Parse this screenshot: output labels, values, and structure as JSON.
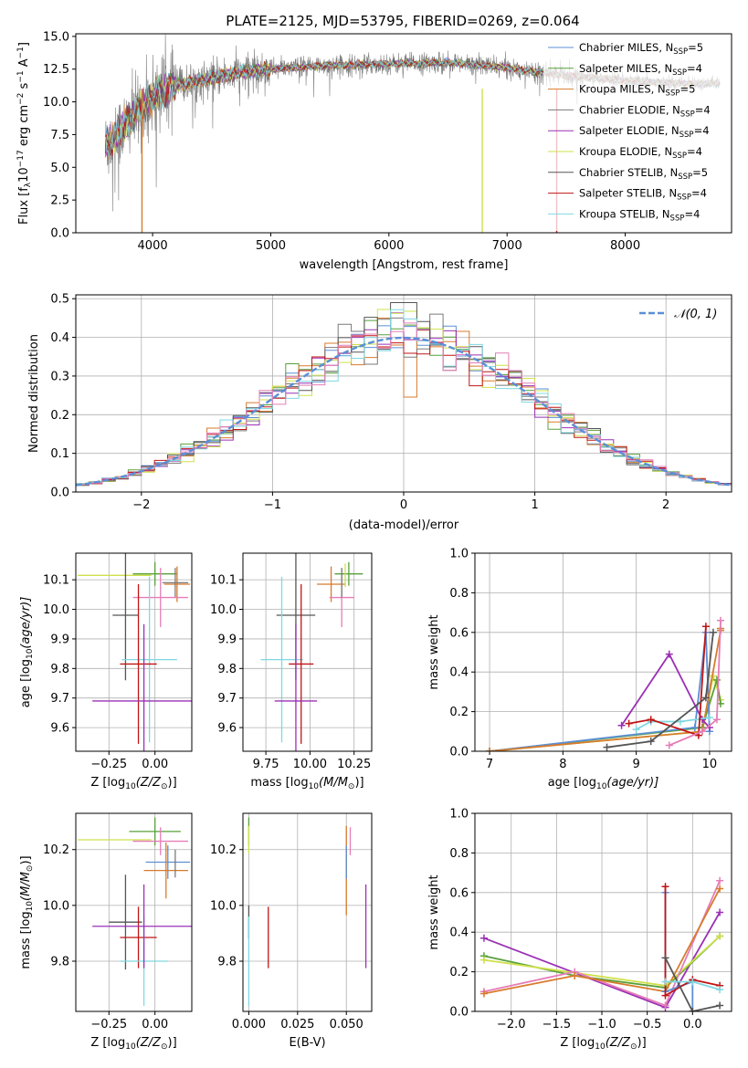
{
  "colors": {
    "Chabrier MILES": "#5b8fd6",
    "Salpeter MILES": "#59a03a",
    "Kroupa MILES": "#d77b2c",
    "Chabrier ELODIE": "#7a7a7a",
    "Salpeter ELODIE": "#9b30b5",
    "Kroupa ELODIE": "#cfe04a",
    "Chabrier STELIB": "#555555",
    "Salpeter STELIB": "#c01515",
    "Kroupa STELIB": "#7fd8e0",
    "Salpeter STELIB alt": "#e67db8",
    "normal": "#5b8fd6"
  },
  "chart_data": [
    {
      "id": "spectrum",
      "type": "line",
      "title": "PLATE=2125, MJD=53795, FIBERID=0269, z=0.064",
      "xlabel": "wavelength [Angstrom, rest frame]",
      "ylabel_parts": {
        "a": "Flux [f",
        "b": "λ",
        "c": "10",
        "d": "−17",
        "e": " erg cm",
        "f": "−2",
        "g": " s",
        "h": "−1",
        "i": " A",
        "j": "−1",
        "k": "]"
      },
      "xlim": [
        3350,
        8900
      ],
      "ylim": [
        0,
        15.2
      ],
      "xticks": [
        4000,
        5000,
        6000,
        7000,
        8000
      ],
      "yticks": [
        0.0,
        2.5,
        5.0,
        7.5,
        10.0,
        12.5,
        15.0
      ],
      "ytick_labels": [
        "0.0",
        "2.5",
        "5.0",
        "7.5",
        "10.0",
        "12.5",
        "15.0"
      ],
      "legend": [
        {
          "name": "Chabrier MILES",
          "nssp": "5"
        },
        {
          "name": "Salpeter MILES",
          "nssp": "4"
        },
        {
          "name": "Kroupa MILES",
          "nssp": "5"
        },
        {
          "name": "Chabrier ELODIE",
          "nssp": "4"
        },
        {
          "name": "Salpeter ELODIE",
          "nssp": "4"
        },
        {
          "name": "Kroupa ELODIE",
          "nssp": "4"
        },
        {
          "name": "Chabrier STELIB",
          "nssp": "5"
        },
        {
          "name": "Salpeter STELIB",
          "nssp": "4"
        },
        {
          "name": "Kroupa STELIB",
          "nssp": "4"
        }
      ],
      "legend_sub": "SSP",
      "legend_prefix": ", N",
      "legend_eq": "=",
      "legend_loc": "upper right",
      "data_envelope": {
        "x": [
          3600,
          3700,
          3800,
          3900,
          4000,
          4200,
          4400,
          4600,
          4800,
          5000,
          5500,
          6000,
          6500,
          7000,
          7500,
          8000,
          8500,
          8800
        ],
        "y": [
          6.5,
          7.5,
          8.5,
          9.5,
          10.5,
          11.2,
          11.6,
          12.0,
          12.3,
          12.5,
          12.8,
          12.9,
          13.0,
          12.6,
          12.0,
          11.6,
          11.4,
          11.4
        ]
      },
      "grid": false
    },
    {
      "id": "residuals",
      "type": "bar",
      "xlabel": "(data-model)/error",
      "ylabel": "Normed distribution",
      "xlim": [
        -2.5,
        2.5
      ],
      "ylim": [
        0,
        0.51
      ],
      "xticks": [
        -2,
        -1,
        0,
        1,
        2
      ],
      "xtick_labels": [
        "−2",
        "−1",
        "0",
        "1",
        "2"
      ],
      "yticks": [
        0.0,
        0.1,
        0.2,
        0.3,
        0.4,
        0.5
      ],
      "ytick_labels": [
        "0.0",
        "0.1",
        "0.2",
        "0.3",
        "0.4",
        "0.5"
      ],
      "bin_width": 0.1,
      "legend": [
        {
          "name": "𝒩(0, 1)"
        }
      ],
      "legend_loc": "upper right",
      "grid": true
    },
    {
      "id": "age-vs-z",
      "type": "scatter",
      "xlabel": "Z [log",
      "xlabel_sub": "10",
      "xlabel_tail": "(Z/Z",
      "xlabel_sun": "⊙",
      "xlabel_end": ")]",
      "ylabel": "age  [log",
      "ylabel_sub": "10",
      "ylabel_tail": "(age/yr)]",
      "xlim": [
        -0.43,
        0.2
      ],
      "ylim": [
        9.52,
        10.19
      ],
      "xticks": [
        -0.25,
        0.0
      ],
      "xtick_labels": [
        "−0.25",
        "0.00"
      ],
      "yticks": [
        9.6,
        9.7,
        9.8,
        9.9,
        10.0,
        10.1
      ],
      "ytick_labels": [
        "9.6",
        "9.7",
        "9.8",
        "9.9",
        "10.0",
        "10.1"
      ],
      "points": [
        {
          "series": "Kroupa ELODIE",
          "x": -0.22,
          "xerr": 0.2,
          "y": 10.115,
          "yerr": 0.0
        },
        {
          "series": "Salpeter MILES",
          "x": 0.0,
          "xerr": 0.12,
          "y": 10.12,
          "yerr": 0.04
        },
        {
          "series": "Kroupa MILES",
          "x": 0.12,
          "xerr": 0.07,
          "y": 10.085,
          "yerr": 0.06
        },
        {
          "series": "Chabrier ELODIE",
          "x": 0.11,
          "xerr": 0.07,
          "y": 10.09,
          "yerr": 0.05
        },
        {
          "series": "Salpeter STELIB alt",
          "x": 0.03,
          "xerr": 0.15,
          "y": 10.04,
          "yerr": 0.1
        },
        {
          "series": "Chabrier STELIB",
          "x": -0.16,
          "xerr": 0.07,
          "y": 9.98,
          "yerr": 0.22
        },
        {
          "series": "Kroupa STELIB",
          "x": -0.03,
          "xerr": 0.15,
          "y": 9.83,
          "yerr": 0.28
        },
        {
          "series": "Salpeter STELIB",
          "x": -0.09,
          "xerr": 0.1,
          "y": 9.815,
          "yerr": 0.27
        },
        {
          "series": "Salpeter ELODIE",
          "x": -0.06,
          "xerr": 0.28,
          "y": 9.69,
          "yerr": 0.26
        }
      ],
      "grid": true
    },
    {
      "id": "age-vs-mass",
      "type": "scatter",
      "xlabel": "mass [log",
      "xlabel_sub": "10",
      "xlabel_tail": "(M/M",
      "xlabel_sun": "⊙",
      "xlabel_end": ")]",
      "xlim": [
        9.62,
        10.35
      ],
      "ylim": [
        9.52,
        10.19
      ],
      "xticks": [
        9.75,
        10.0,
        10.25
      ],
      "xtick_labels": [
        "9.75",
        "10.00",
        "10.25"
      ],
      "yticks": [
        9.6,
        9.7,
        9.8,
        9.9,
        10.0,
        10.1
      ],
      "ytick_labels": [
        "9.6",
        "9.7",
        "9.8",
        "9.9",
        "10.0",
        "10.1"
      ],
      "points": [
        {
          "series": "Salpeter MILES",
          "x": 10.22,
          "xerr": 0.08,
          "y": 10.12,
          "yerr": 0.04
        },
        {
          "series": "Kroupa MILES",
          "x": 10.12,
          "xerr": 0.08,
          "y": 10.085,
          "yerr": 0.06
        },
        {
          "series": "Kroupa ELODIE",
          "x": 10.2,
          "xerr": 0.0,
          "y": 10.115,
          "yerr": 0.04
        },
        {
          "series": "Salpeter STELIB alt",
          "x": 10.18,
          "xerr": 0.07,
          "y": 10.04,
          "yerr": 0.1
        },
        {
          "series": "Chabrier ELODIE",
          "x": 10.18,
          "xerr": 0.0,
          "y": 10.09,
          "yerr": 0.05
        },
        {
          "series": "Chabrier STELIB",
          "x": 9.92,
          "xerr": 0.11,
          "y": 9.98,
          "yerr": 0.22
        },
        {
          "series": "Kroupa STELIB",
          "x": 9.84,
          "xerr": 0.12,
          "y": 9.83,
          "yerr": 0.28
        },
        {
          "series": "Salpeter STELIB",
          "x": 9.95,
          "xerr": 0.07,
          "y": 9.815,
          "yerr": 0.27
        },
        {
          "series": "Salpeter ELODIE",
          "x": 9.92,
          "xerr": 0.12,
          "y": 9.69,
          "yerr": 0.26
        }
      ],
      "grid": true
    },
    {
      "id": "massweight-vs-age",
      "type": "line",
      "xlabel": "age  [log",
      "xlabel_sub": "10",
      "xlabel_tail": "(age/yr)]",
      "ylabel": "mass weight",
      "xlim": [
        6.8,
        10.3
      ],
      "ylim": [
        0,
        1.0
      ],
      "xticks": [
        7,
        8,
        9,
        10
      ],
      "xtick_labels": [
        "7",
        "8",
        "9",
        "10"
      ],
      "yticks": [
        0.0,
        0.2,
        0.4,
        0.6,
        0.8,
        1.0
      ],
      "ytick_labels": [
        "0.0",
        "0.2",
        "0.4",
        "0.6",
        "0.8",
        "1.0"
      ],
      "series": [
        {
          "name": "Kroupa ELODIE",
          "x": [
            7.0,
            9.9,
            10.05,
            10.15
          ],
          "y": [
            0.0,
            0.1,
            0.38,
            0.26
          ]
        },
        {
          "name": "Salpeter MILES",
          "x": [
            7.0,
            9.9,
            10.1,
            10.15
          ],
          "y": [
            0.0,
            0.12,
            0.36,
            0.24
          ]
        },
        {
          "name": "Chabrier MILES",
          "x": [
            7.0,
            9.8,
            9.95,
            10.0
          ],
          "y": [
            0.0,
            0.12,
            0.6,
            0.1
          ]
        },
        {
          "name": "Kroupa MILES",
          "x": [
            7.0,
            9.9,
            10.15,
            10.15
          ],
          "y": [
            0.0,
            0.1,
            0.61,
            0.62
          ]
        },
        {
          "name": "Salpeter ELODIE",
          "x": [
            8.8,
            9.45,
            9.9,
            10.0
          ],
          "y": [
            0.13,
            0.49,
            0.16,
            0.12
          ]
        },
        {
          "name": "Kroupa STELIB",
          "x": [
            9.0,
            9.2,
            9.6,
            10.0
          ],
          "y": [
            0.11,
            0.15,
            0.15,
            0.17
          ]
        },
        {
          "name": "Salpeter STELIB",
          "x": [
            8.9,
            9.2,
            9.85,
            9.95
          ],
          "y": [
            0.14,
            0.16,
            0.08,
            0.63
          ]
        },
        {
          "name": "Chabrier STELIB",
          "x": [
            8.6,
            9.2,
            9.95,
            10.05
          ],
          "y": [
            0.02,
            0.05,
            0.27,
            0.6
          ]
        },
        {
          "name": "Salpeter STELIB alt",
          "x": [
            9.45,
            9.9,
            10.1,
            10.15
          ],
          "y": [
            0.03,
            0.1,
            0.16,
            0.66
          ]
        }
      ],
      "grid": true
    },
    {
      "id": "mass-vs-z",
      "type": "scatter",
      "xlabel": "Z [log",
      "xlabel_sub": "10",
      "xlabel_tail": "(Z/Z",
      "xlabel_sun": "⊙",
      "xlabel_end": ")]",
      "ylabel": "mass [log",
      "ylabel_sub": "10",
      "ylabel_tail": "(M/M",
      "ylabel_sun": "⊙",
      "ylabel_end": ")]",
      "xlim": [
        -0.43,
        0.2
      ],
      "ylim": [
        9.62,
        10.33
      ],
      "xticks": [
        -0.25,
        0.0
      ],
      "xtick_labels": [
        "−0.25",
        "0.00"
      ],
      "yticks": [
        9.8,
        10.0,
        10.2
      ],
      "ytick_labels": [
        "9.8",
        "10.0",
        "10.2"
      ],
      "points": [
        {
          "series": "Salpeter MILES",
          "x": 0.0,
          "xerr": 0.14,
          "y": 10.265,
          "yerr": 0.05
        },
        {
          "series": "Kroupa ELODIE",
          "x": -0.22,
          "xerr": 0.2,
          "y": 10.235,
          "yerr": 0.0
        },
        {
          "series": "Salpeter STELIB alt",
          "x": 0.03,
          "xerr": 0.15,
          "y": 10.23,
          "yerr": 0.05
        },
        {
          "series": "Chabrier MILES",
          "x": 0.07,
          "xerr": 0.12,
          "y": 10.155,
          "yerr": 0.06
        },
        {
          "series": "Kroupa MILES",
          "x": 0.06,
          "xerr": 0.12,
          "y": 10.125,
          "yerr": 0.1
        },
        {
          "series": "Chabrier STELIB",
          "x": -0.16,
          "xerr": 0.09,
          "y": 9.94,
          "yerr": 0.17
        },
        {
          "series": "Salpeter STELIB",
          "x": -0.09,
          "xerr": 0.1,
          "y": 9.885,
          "yerr": 0.11
        },
        {
          "series": "Kroupa STELIB",
          "x": -0.06,
          "xerr": 0.13,
          "y": 9.8,
          "yerr": 0.16
        },
        {
          "series": "Salpeter ELODIE",
          "x": -0.06,
          "xerr": 0.28,
          "y": 9.925,
          "yerr": 0.15
        },
        {
          "series": "Chabrier ELODIE",
          "x": 0.11,
          "xerr": 0.0,
          "y": 10.15,
          "yerr": 0.05
        }
      ],
      "grid": true
    },
    {
      "id": "mass-vs-ebv",
      "type": "scatter",
      "xlabel": "E(B-V)",
      "xlim": [
        -0.003,
        0.063
      ],
      "ylim": [
        9.62,
        10.33
      ],
      "xticks": [
        0.0,
        0.025,
        0.05
      ],
      "xtick_labels": [
        "0.000",
        "0.025",
        "0.050"
      ],
      "yticks": [
        9.8,
        10.0,
        10.2
      ],
      "ytick_labels": [
        "9.8",
        "10.0",
        "10.2"
      ],
      "points": [
        {
          "series": "Salpeter MILES",
          "x": 0.0,
          "xerr": 0.0,
          "y": 10.265,
          "yerr": 0.05
        },
        {
          "series": "Kroupa ELODIE",
          "x": 0.0,
          "xerr": 0.0,
          "y": 10.235,
          "yerr": 0.05
        },
        {
          "series": "Chabrier STELIB",
          "x": 0.0,
          "xerr": 0.0,
          "y": 9.94,
          "yerr": 0.06
        },
        {
          "series": "Kroupa STELIB",
          "x": 0.0,
          "xerr": 0.0,
          "y": 9.8,
          "yerr": 0.16
        },
        {
          "series": "Salpeter STELIB",
          "x": 0.01,
          "xerr": 0.0,
          "y": 9.885,
          "yerr": 0.11
        },
        {
          "series": "Kroupa MILES",
          "x": 0.05,
          "xerr": 0.0,
          "y": 10.125,
          "yerr": 0.16
        },
        {
          "series": "Salpeter STELIB alt",
          "x": 0.052,
          "xerr": 0.0,
          "y": 10.23,
          "yerr": 0.05
        },
        {
          "series": "Salpeter ELODIE",
          "x": 0.06,
          "xerr": 0.0,
          "y": 9.925,
          "yerr": 0.15
        },
        {
          "series": "Chabrier MILES",
          "x": 0.05,
          "xerr": 0.0,
          "y": 10.155,
          "yerr": 0.06
        }
      ],
      "grid": true
    },
    {
      "id": "massweight-vs-z",
      "type": "line",
      "xlabel": "Z [log",
      "xlabel_sub": "10",
      "xlabel_tail": "(Z/Z",
      "xlabel_sun": "⊙",
      "xlabel_end": ")]",
      "ylabel": "mass weight",
      "xlim": [
        -2.4,
        0.43
      ],
      "ylim": [
        0,
        1.0
      ],
      "xticks": [
        -2.0,
        -1.5,
        -1.0,
        -0.5,
        0.0
      ],
      "xtick_labels": [
        "−2.0",
        "−1.5",
        "−1.0",
        "−0.5",
        "0.0"
      ],
      "yticks": [
        0.0,
        0.2,
        0.4,
        0.6,
        0.8,
        1.0
      ],
      "ytick_labels": [
        "0.0",
        "0.2",
        "0.4",
        "0.6",
        "0.8",
        "1.0"
      ],
      "series": [
        {
          "name": "Salpeter ELODIE",
          "x": [
            -2.3,
            -0.3,
            0.3
          ],
          "y": [
            0.37,
            0.02,
            0.5
          ]
        },
        {
          "name": "Salpeter MILES",
          "x": [
            -2.3,
            -1.3,
            -0.3,
            0.3
          ],
          "y": [
            0.28,
            0.18,
            0.12,
            0.38
          ]
        },
        {
          "name": "Kroupa ELODIE",
          "x": [
            -2.3,
            -0.3,
            0.3
          ],
          "y": [
            0.26,
            0.13,
            0.38
          ]
        },
        {
          "name": "Salpeter STELIB alt",
          "x": [
            -2.3,
            -1.3,
            -0.3,
            0.3
          ],
          "y": [
            0.1,
            0.2,
            0.03,
            0.66
          ]
        },
        {
          "name": "Kroupa MILES",
          "x": [
            -2.3,
            -1.3,
            -0.3,
            0.3
          ],
          "y": [
            0.09,
            0.18,
            0.1,
            0.62
          ]
        },
        {
          "name": "Chabrier MILES",
          "x": [
            -0.3,
            -0.3,
            0.0,
            0.0
          ],
          "y": [
            0.6,
            0.1,
            0.15,
            0.0
          ]
        },
        {
          "name": "Salpeter STELIB",
          "x": [
            -0.3,
            -0.3,
            0.0,
            0.3
          ],
          "y": [
            0.63,
            0.08,
            0.16,
            0.13
          ]
        },
        {
          "name": "Chabrier STELIB",
          "x": [
            -0.3,
            0.0,
            0.3
          ],
          "y": [
            0.27,
            0.0,
            0.03
          ]
        },
        {
          "name": "Kroupa STELIB",
          "x": [
            -0.3,
            0.0,
            0.3
          ],
          "y": [
            0.15,
            0.15,
            0.11
          ]
        }
      ],
      "grid": true
    }
  ]
}
